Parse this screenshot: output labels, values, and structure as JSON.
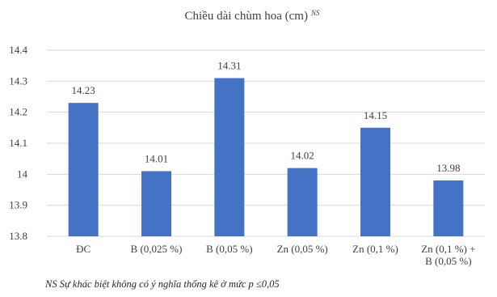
{
  "chart_data": {
    "type": "bar",
    "title": "Chiều dài chùm hoa (cm)",
    "title_superscript": "NS",
    "categories": [
      [
        "ĐC"
      ],
      [
        "B (0,025 %)"
      ],
      [
        "B (0,05 %)"
      ],
      [
        "Zn (0,05 %)"
      ],
      [
        "Zn (0,1 %)"
      ],
      [
        "Zn (0,1 %) +",
        "B (0,05 %)"
      ]
    ],
    "values": [
      14.23,
      14.01,
      14.31,
      14.02,
      14.15,
      13.98
    ],
    "data_labels": [
      "14.23",
      "14.01",
      "14.31",
      "14.02",
      "14.15",
      "13.98"
    ],
    "ylim": [
      13.8,
      14.4
    ],
    "yticks": [
      13.8,
      13.9,
      14,
      14.1,
      14.2,
      14.3,
      14.4
    ],
    "ytick_labels": [
      "13.8",
      "13.9",
      "14",
      "14.1",
      "14.2",
      "14.3",
      "14.4"
    ],
    "xlabel": "",
    "ylabel": "",
    "grid": "horizontal",
    "legend": "none",
    "bar_color": "#4472C4",
    "grid_color": "#D9D9D9",
    "footnote": "NS Sự khác biệt không có ý nghĩa thống kê ở mức p ≤0,05"
  }
}
